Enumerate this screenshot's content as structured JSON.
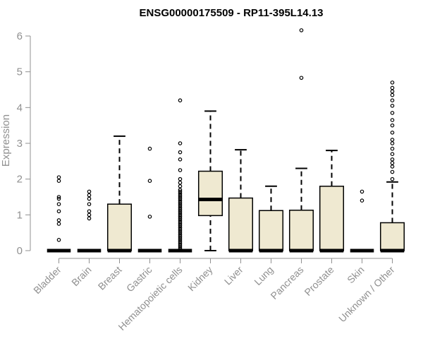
{
  "chart_data": {
    "type": "boxplot",
    "title": "ENSG00000175509 - RP11-395L14.13",
    "ylabel": "Expression",
    "xlabel": "",
    "ylim": [
      0,
      6
    ],
    "yticks": [
      "0",
      "1",
      "2",
      "3",
      "4",
      "5",
      "6"
    ],
    "box_fill": "#efe9d1",
    "categories": [
      "Bladder",
      "Brain",
      "Breast",
      "Gastric",
      "Hematopoietic cells",
      "Kidney",
      "Liver",
      "Lung",
      "Pancreas",
      "Prostate",
      "Skin",
      "Unknown / Other"
    ],
    "boxes": [
      {
        "category": "Bladder",
        "whisker_low": 0,
        "q1": 0,
        "median": 0,
        "q3": 0,
        "whisker_high": 0,
        "outliers": [
          0.3,
          0.75,
          0.85,
          1.1,
          1.3,
          1.45,
          1.5,
          1.95,
          2.05
        ]
      },
      {
        "category": "Brain",
        "whisker_low": 0,
        "q1": 0,
        "median": 0,
        "q3": 0,
        "whisker_high": 0,
        "outliers": [
          0.9,
          1.0,
          1.1,
          1.3,
          1.45,
          1.55,
          1.65
        ]
      },
      {
        "category": "Breast",
        "whisker_low": 0,
        "q1": 0,
        "median": 0,
        "q3": 1.3,
        "whisker_high": 3.2,
        "outliers": []
      },
      {
        "category": "Gastric",
        "whisker_low": 0,
        "q1": 0,
        "median": 0,
        "q3": 0,
        "whisker_high": 0,
        "outliers": [
          0.95,
          1.95,
          2.85
        ]
      },
      {
        "category": "Hematopoietic cells",
        "whisker_low": 0,
        "q1": 0,
        "median": 0,
        "q3": 0,
        "whisker_high": 0,
        "outliers": [
          0.05,
          0.1,
          0.15,
          0.2,
          0.25,
          0.3,
          0.35,
          0.4,
          0.45,
          0.5,
          0.55,
          0.6,
          0.65,
          0.7,
          0.75,
          0.8,
          0.85,
          0.9,
          0.95,
          1.0,
          1.05,
          1.1,
          1.15,
          1.2,
          1.25,
          1.3,
          1.35,
          1.4,
          1.45,
          1.5,
          1.55,
          1.6,
          1.65,
          1.7,
          1.8,
          1.9,
          2.0,
          2.25,
          2.55,
          2.75,
          3.0,
          4.2
        ]
      },
      {
        "category": "Kidney",
        "whisker_low": 0,
        "q1": 0.98,
        "median": 1.43,
        "q3": 2.22,
        "whisker_high": 3.9,
        "outliers": []
      },
      {
        "category": "Liver",
        "whisker_low": 0,
        "q1": 0,
        "median": 0,
        "q3": 1.47,
        "whisker_high": 2.82,
        "outliers": []
      },
      {
        "category": "Lung",
        "whisker_low": 0,
        "q1": 0,
        "median": 0,
        "q3": 1.12,
        "whisker_high": 1.8,
        "outliers": []
      },
      {
        "category": "Pancreas",
        "whisker_low": 0,
        "q1": 0,
        "median": 0,
        "q3": 1.13,
        "whisker_high": 2.3,
        "outliers": [
          4.83,
          6.16
        ]
      },
      {
        "category": "Prostate",
        "whisker_low": 0,
        "q1": 0,
        "median": 0,
        "q3": 1.8,
        "whisker_high": 2.8,
        "outliers": []
      },
      {
        "category": "Skin",
        "whisker_low": 0,
        "q1": 0,
        "median": 0,
        "q3": 0,
        "whisker_high": 0,
        "outliers": [
          1.4,
          1.65
        ]
      },
      {
        "category": "Unknown / Other",
        "whisker_low": 0,
        "q1": 0,
        "median": 0,
        "q3": 0.78,
        "whisker_high": 1.92,
        "outliers": [
          2.0,
          2.2,
          2.35,
          2.45,
          2.55,
          2.7,
          2.85,
          3.0,
          3.1,
          3.3,
          3.5,
          3.65,
          3.85,
          4.05,
          4.2,
          4.35,
          4.45,
          4.55,
          4.7
        ]
      }
    ]
  }
}
